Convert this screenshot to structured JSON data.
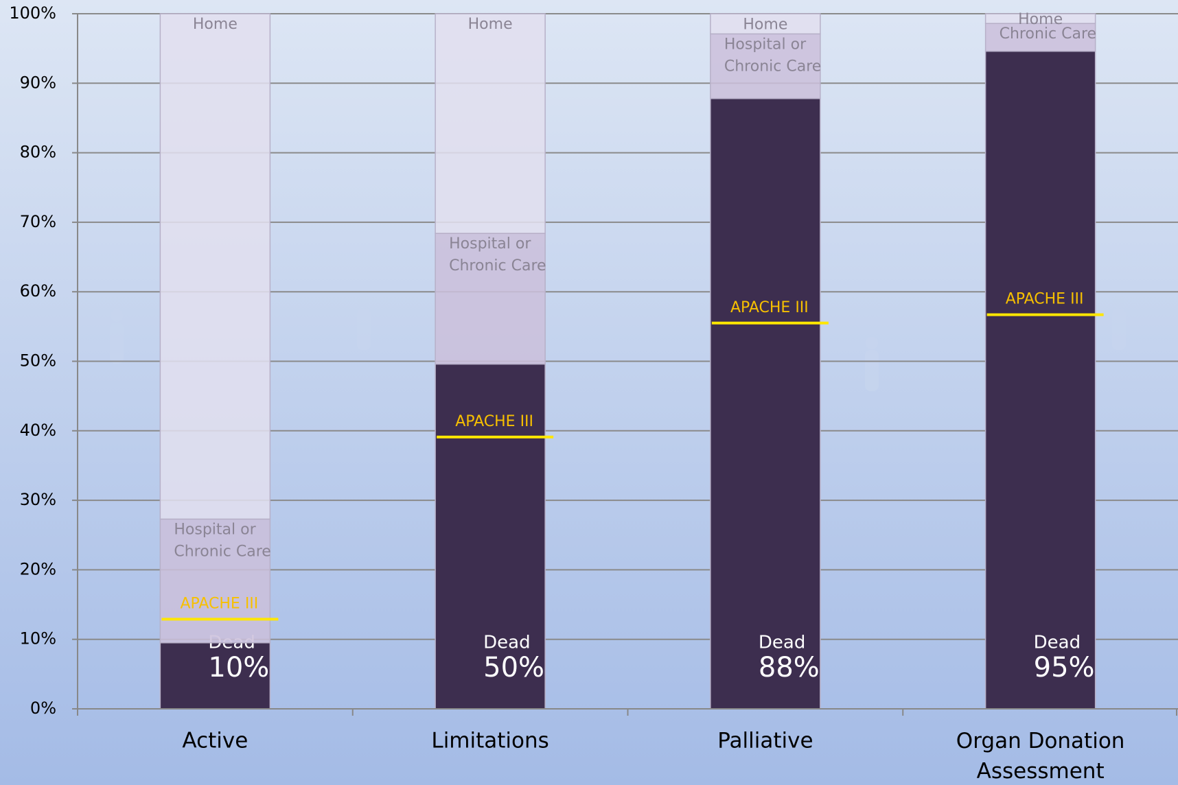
{
  "chart_data": {
    "type": "stacked-bar",
    "categories": [
      "Active",
      "Limitations",
      "Palliative",
      "Organ Donation Assessment"
    ],
    "series": [
      {
        "name": "Dead",
        "color": "#3d2e4f",
        "values": [
          9.5,
          49.6,
          87.8,
          94.6
        ],
        "labels": [
          "Dead",
          "Dead",
          "Dead",
          "Dead"
        ],
        "value_labels": [
          "10%",
          "50%",
          "88%",
          "95%"
        ]
      },
      {
        "name": "Hospital or Chronic Care",
        "color": "#cbc0db",
        "values": [
          17.8,
          18.8,
          9.3,
          4.0
        ],
        "labels": [
          "Hospital or Chronic Care",
          "Hospital or Chronic Care",
          "Hospital or Chronic Care",
          "Chronic Care"
        ]
      },
      {
        "name": "Home",
        "color": "#e2dfee",
        "values": [
          72.7,
          31.6,
          2.9,
          1.4
        ],
        "labels": [
          "Home",
          "Home",
          "Home",
          "Home"
        ]
      }
    ],
    "markers": {
      "name": "APACHE III",
      "color": "#ffe600",
      "text_color": "#f7c000",
      "values": [
        12.9,
        39.1,
        55.5,
        56.7
      ]
    },
    "ylim": [
      0,
      100
    ],
    "yticks": [
      {
        "value": 0,
        "label": "0%"
      },
      {
        "value": 10,
        "label": "10%"
      },
      {
        "value": 20,
        "label": "20%"
      },
      {
        "value": 30,
        "label": "30%"
      },
      {
        "value": 40,
        "label": "40%"
      },
      {
        "value": 50,
        "label": "50%"
      },
      {
        "value": 60,
        "label": "60%"
      },
      {
        "value": 70,
        "label": "70%"
      },
      {
        "value": 80,
        "label": "80%"
      },
      {
        "value": 90,
        "label": "90%"
      },
      {
        "value": 100,
        "label": "100%"
      }
    ],
    "grid": true
  }
}
